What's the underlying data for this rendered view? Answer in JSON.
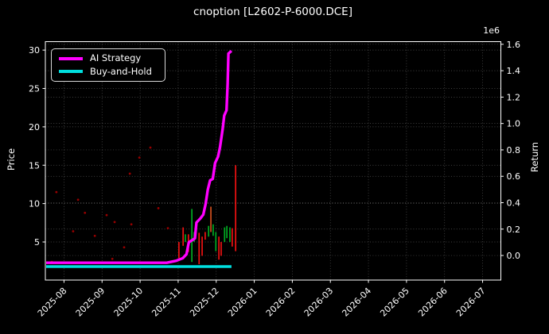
{
  "window": {
    "title": "cnoption [L2602-P-6000.DCE]"
  },
  "chart_data": {
    "type": "line",
    "title": "cnoption [L2602-P-6000.DCE]",
    "background_color": "#000000",
    "text_color": "#ffffff",
    "grid_color": "#9a9a9a",
    "spine_color": "#ffffff",
    "legend_position": "upper-left",
    "grid": true,
    "legend": [
      {
        "label": "AI Strategy",
        "color": "#ff00ff"
      },
      {
        "label": "Buy-and-Hold",
        "color": "#00e0e0"
      }
    ],
    "x_axis": {
      "tick_labels": [
        "2025-08",
        "2025-09",
        "2025-10",
        "2025-11",
        "2025-12",
        "2026-01",
        "2026-02",
        "2026-03",
        "2026-04",
        "2026-05",
        "2026-06",
        "2026-07"
      ],
      "range_months": [
        -0.49,
        11.48
      ]
    },
    "left_axis": {
      "label": "Price",
      "ticks": [
        5,
        10,
        15,
        20,
        25,
        30
      ],
      "range": [
        0.04,
        31.1
      ]
    },
    "right_axis": {
      "label": "Return",
      "multiplier": "1e6",
      "ticks": [
        0.0,
        0.2,
        0.4,
        0.6,
        0.8,
        1.0,
        1.2,
        1.4,
        1.6
      ],
      "range": [
        -0.186,
        1.62
      ]
    },
    "series": [
      {
        "name": "Buy-and-Hold",
        "axis": "right",
        "color": "#00e0e0",
        "width": 3.4,
        "points": [
          [
            -0.47,
            -0.084
          ],
          [
            4.4,
            -0.084
          ]
        ]
      },
      {
        "name": "AI Strategy",
        "axis": "right",
        "color": "#ff00ff",
        "width": 3.4,
        "points": [
          [
            -0.47,
            -0.055
          ],
          [
            2.7,
            -0.055
          ],
          [
            2.95,
            -0.04
          ],
          [
            3.12,
            -0.02
          ],
          [
            3.22,
            0.01
          ],
          [
            3.28,
            0.1
          ],
          [
            3.44,
            0.13
          ],
          [
            3.48,
            0.25
          ],
          [
            3.58,
            0.28
          ],
          [
            3.66,
            0.31
          ],
          [
            3.72,
            0.39
          ],
          [
            3.78,
            0.5
          ],
          [
            3.84,
            0.57
          ],
          [
            3.91,
            0.58
          ],
          [
            3.97,
            0.7
          ],
          [
            4.05,
            0.75
          ],
          [
            4.1,
            0.82
          ],
          [
            4.17,
            0.96
          ],
          [
            4.21,
            1.06
          ],
          [
            4.27,
            1.1
          ],
          [
            4.3,
            1.3
          ],
          [
            4.32,
            1.53
          ],
          [
            4.4,
            1.55
          ]
        ]
      }
    ],
    "price_bars": [
      {
        "x": 3.02,
        "low": 2.9,
        "high": 5.0,
        "color": "#ee1111"
      },
      {
        "x": 3.13,
        "low": 4.5,
        "high": 6.9,
        "color": "#ee1111"
      },
      {
        "x": 3.19,
        "low": 5.0,
        "high": 6.0,
        "color": "#00aa22"
      },
      {
        "x": 3.27,
        "low": 3.7,
        "high": 6.0,
        "color": "#ee1111"
      },
      {
        "x": 3.36,
        "low": 2.4,
        "high": 9.3,
        "color": "#00aa22"
      },
      {
        "x": 3.42,
        "low": 5.0,
        "high": 6.3,
        "color": "#00aa22"
      },
      {
        "x": 3.55,
        "low": 2.1,
        "high": 6.2,
        "color": "#ee1111"
      },
      {
        "x": 3.63,
        "low": 3.2,
        "high": 5.7,
        "color": "#ee1111"
      },
      {
        "x": 3.71,
        "low": 5.3,
        "high": 6.3,
        "color": "#ee1111"
      },
      {
        "x": 3.8,
        "low": 5.7,
        "high": 7.1,
        "color": "#00aa22"
      },
      {
        "x": 3.86,
        "low": 6.3,
        "high": 9.6,
        "color": "#d2501e"
      },
      {
        "x": 3.92,
        "low": 5.8,
        "high": 7.3,
        "color": "#00aa22"
      },
      {
        "x": 3.99,
        "low": 3.8,
        "high": 6.3,
        "color": "#00aa22"
      },
      {
        "x": 4.07,
        "low": 2.7,
        "high": 5.7,
        "color": "#ee1111"
      },
      {
        "x": 4.13,
        "low": 3.2,
        "high": 5.0,
        "color": "#ee1111"
      },
      {
        "x": 4.22,
        "low": 5.0,
        "high": 6.9,
        "color": "#00aa22"
      },
      {
        "x": 4.28,
        "low": 5.5,
        "high": 7.1,
        "color": "#00aa22"
      },
      {
        "x": 4.36,
        "low": 5.0,
        "high": 6.9,
        "color": "#00aa22"
      },
      {
        "x": 4.42,
        "low": 4.4,
        "high": 6.8,
        "color": "#ee1111"
      },
      {
        "x": 4.51,
        "low": 3.8,
        "high": 15.0,
        "color": "#ee1111"
      }
    ],
    "price_dots": [
      {
        "x": 2.27,
        "y": 17.3
      },
      {
        "x": 1.98,
        "y": 16.0
      },
      {
        "x": 1.73,
        "y": 13.9
      },
      {
        "x": -0.2,
        "y": 11.5
      },
      {
        "x": 0.37,
        "y": 10.5
      },
      {
        "x": 0.55,
        "y": 8.8
      },
      {
        "x": 1.12,
        "y": 8.5
      },
      {
        "x": 1.33,
        "y": 7.6
      },
      {
        "x": 1.77,
        "y": 7.3
      },
      {
        "x": 2.48,
        "y": 9.4
      },
      {
        "x": 2.73,
        "y": 6.8
      },
      {
        "x": 0.24,
        "y": 6.4
      },
      {
        "x": 0.81,
        "y": 5.8
      },
      {
        "x": 1.58,
        "y": 4.3
      },
      {
        "x": 1.27,
        "y": 2.8
      },
      {
        "x": -0.32,
        "y": 2.4
      }
    ],
    "dot_color": "#a80000"
  }
}
